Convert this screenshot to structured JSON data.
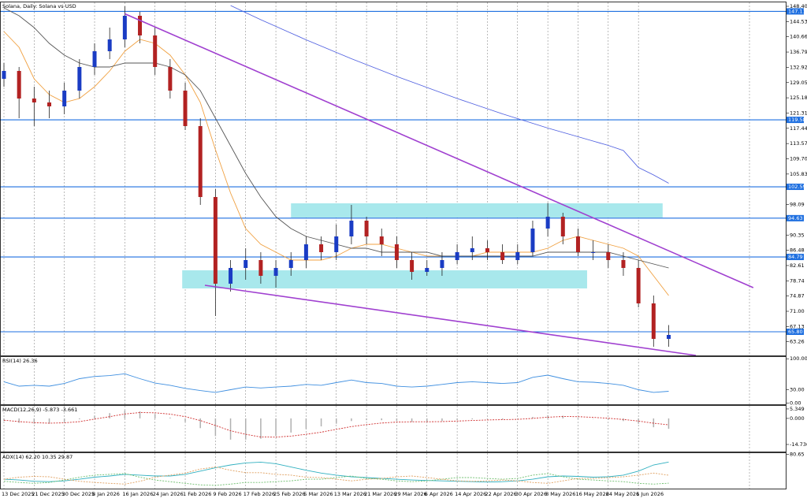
{
  "chart_data": [
    {
      "type": "candlestick",
      "title": "Solana, Daily:  Solana vs USD",
      "categories": [
        "13 Dec 2025",
        null,
        "21 Dec 2025",
        null,
        "30 Dec 2025",
        null,
        "8 Jan 2026",
        null,
        "16 Jan 2026",
        null,
        "24 Jan 2026",
        null,
        "1 Feb 2026",
        null,
        "9 Feb 2026",
        null,
        "17 Feb 2026",
        null,
        "25 Feb 2026",
        null,
        "5 Mar 2026",
        null,
        "13 Mar 2026",
        null,
        "21 Mar 2026",
        null,
        "29 Mar 2026",
        null,
        "6 Apr 2026",
        null,
        "14 Apr 2026",
        null,
        "22 Apr 2026",
        null,
        "30 Apr 2026",
        null,
        "8 May 2026",
        null,
        "16 May 2026",
        null,
        "24 May 2026",
        null,
        "1 Jun 2026",
        null,
        null
      ],
      "open": [
        130,
        132,
        125,
        124,
        123,
        127,
        133,
        137,
        140,
        146,
        141,
        133,
        127,
        118,
        100,
        78,
        82,
        84,
        80,
        82,
        84,
        88,
        86,
        90,
        94,
        90,
        88,
        84,
        81,
        82,
        84,
        86,
        87,
        86,
        84,
        86,
        92,
        95,
        90,
        86,
        86,
        84,
        82,
        73,
        64
      ],
      "high": [
        134,
        133,
        128,
        127,
        129,
        135,
        139,
        143,
        148.4,
        147,
        143,
        135,
        129,
        120,
        102,
        84,
        87,
        86,
        84,
        86,
        90,
        90,
        93,
        98,
        95,
        92,
        90,
        86,
        84,
        86,
        88,
        90,
        89,
        88,
        88,
        94,
        98.5,
        96,
        92,
        89,
        88,
        86,
        84,
        75,
        67.5
      ],
      "low": [
        128,
        120,
        118,
        120,
        121,
        125,
        131,
        135,
        138,
        139,
        131,
        125,
        117,
        98,
        69.8,
        76,
        79,
        78,
        77,
        80,
        82,
        84,
        84,
        88,
        88,
        85,
        82,
        79,
        80,
        80,
        83,
        84,
        84,
        83,
        83,
        85,
        90,
        88,
        85,
        84,
        82,
        80,
        72,
        62,
        62
      ],
      "close": [
        132,
        125,
        124,
        123,
        127,
        133,
        137,
        140,
        146,
        141,
        133,
        127,
        118,
        100,
        78,
        82,
        84,
        80,
        82,
        84,
        88,
        86,
        90,
        94,
        90,
        88,
        84,
        81,
        82,
        84,
        86,
        87,
        86,
        84,
        86,
        92,
        95,
        90,
        86,
        86,
        84,
        82,
        73,
        64,
        65
      ],
      "up_color": "#1a3cc4",
      "down_color": "#b22222",
      "series": [
        {
          "color": "#f0a040",
          "values": [
            142,
            138,
            130,
            126,
            124,
            125,
            128,
            132,
            137,
            140,
            139,
            136,
            131,
            124,
            112,
            101,
            92,
            88,
            86,
            84,
            84,
            84,
            85,
            87,
            88,
            88,
            87,
            86,
            85,
            85,
            85,
            85,
            86,
            86,
            86,
            86,
            87,
            89,
            90,
            89,
            88,
            87,
            85,
            80,
            75
          ]
        },
        {
          "color": "#555555",
          "values": [
            148,
            146,
            143,
            139,
            136,
            134,
            133,
            133,
            134,
            134,
            134,
            133,
            131,
            127,
            120,
            113,
            106,
            100,
            95,
            92,
            90,
            89,
            88,
            87,
            87,
            86,
            86,
            86,
            86,
            85,
            85,
            85,
            85,
            85,
            85,
            85,
            86,
            86,
            86,
            86,
            86,
            85,
            84,
            83,
            82
          ]
        },
        {
          "color": "#5060e0",
          "values": [
            null,
            null,
            null,
            null,
            null,
            null,
            null,
            null,
            null,
            null,
            null,
            null,
            null,
            null,
            null,
            148.6,
            146.8,
            145,
            143.3,
            141.6,
            139.9,
            138.3,
            136.7,
            135.1,
            133.6,
            132.1,
            130.6,
            129.2,
            127.8,
            126.4,
            125,
            123.7,
            122.4,
            121.1,
            119.9,
            118.7,
            117.5,
            116.4,
            115.3,
            114.2,
            113.1,
            111.8,
            107.5,
            105.6,
            103.5
          ]
        }
      ],
      "levels": [
        147.11,
        119.58,
        102.59,
        94.63,
        84.79,
        {
          "value": 65.8,
          "label": "65.80"
        }
      ],
      "level_color": "#1e6fe0",
      "trendlines": [
        {
          "x": [
            8,
            49.6
          ],
          "y": [
            146.5,
            77
          ]
        },
        {
          "x": [
            13.3,
            45.8
          ],
          "y": [
            77.6,
            59.8
          ]
        }
      ],
      "trend_color": "#a040d0",
      "zones": [
        {
          "x": [
            19,
            43.6
          ],
          "y": [
            94.8,
            98.4
          ]
        },
        {
          "x": [
            11.8,
            38.6
          ],
          "y": [
            76.8,
            81.4
          ]
        }
      ],
      "zone_color": "#a8e8ec",
      "ylim": [
        59.8,
        149.4
      ],
      "yticks": [
        {
          "value": 148.4,
          "label": "148.40"
        },
        144.53,
        140.66,
        136.79,
        132.92,
        129.05,
        125.18,
        121.31,
        117.44,
        113.57,
        {
          "value": 109.7,
          "label": "109.70"
        },
        105.83,
        98.09,
        90.35,
        86.48,
        82.61,
        78.74,
        74.87,
        {
          "value": 71,
          "label": "71.00"
        },
        67.13,
        63.26
      ]
    },
    {
      "type": "line",
      "title": "RSI(14) 26.36",
      "ylim": [
        -3,
        104
      ],
      "yticks": [
        {
          "value": 100,
          "label": "100.00"
        },
        {
          "value": 30,
          "label": "30.00"
        },
        {
          "value": 0,
          "label": "0.00"
        }
      ],
      "series": [
        {
          "color": "#3f8fe0",
          "values": [
            48,
            38,
            40,
            38,
            44,
            55,
            60,
            62,
            66,
            55,
            45,
            40,
            33,
            28,
            24,
            30,
            36,
            34,
            36,
            38,
            42,
            40,
            46,
            52,
            46,
            44,
            38,
            36,
            38,
            42,
            46,
            48,
            46,
            44,
            46,
            58,
            63,
            55,
            48,
            47,
            44,
            40,
            30,
            24,
            26.36
          ]
        }
      ]
    },
    {
      "type": "macd",
      "title": "MACD(12,26,9) -5.873 -3.661",
      "ylim": [
        -18.75,
        7.1
      ],
      "yticks": [
        5.349,
        {
          "value": 0,
          "label": "0.000"
        },
        -14.736
      ],
      "histogram": {
        "color": "#b0b0b0",
        "values": [
          -1.5,
          -2.5,
          -3,
          -3,
          -2,
          -0.5,
          1.5,
          3,
          4.5,
          4,
          2.5,
          0.5,
          -2,
          -5.5,
          -10,
          -12,
          -12,
          -11.5,
          -10,
          -8,
          -6,
          -4.5,
          -3,
          -1.5,
          -1,
          -1,
          -1.5,
          -2,
          -2,
          -1.5,
          -1,
          -0.5,
          -0.3,
          -0.5,
          -0.3,
          0.8,
          1.8,
          1.5,
          0.5,
          -0.2,
          -0.8,
          -1.5,
          -3,
          -5,
          -5.873
        ]
      },
      "series": [
        {
          "color": "#d03030",
          "values": [
            -1,
            -1.8,
            -2.4,
            -2.7,
            -2.5,
            -1.8,
            -0.4,
            1,
            2.5,
            3.3,
            3.2,
            2.4,
            1,
            -1.2,
            -4,
            -7,
            -9,
            -10.5,
            -10.6,
            -10,
            -9,
            -7.8,
            -6.2,
            -4.6,
            -3.5,
            -2.6,
            -2.1,
            -1.9,
            -1.9,
            -1.8,
            -1.5,
            -1.2,
            -0.9,
            -0.7,
            -0.5,
            0,
            0.7,
            1.1,
            1,
            0.6,
            0.1,
            -0.6,
            -1.5,
            -2.7,
            -3.661
          ]
        }
      ]
    },
    {
      "type": "line",
      "title": "ADX(14) 62.20 10.35 29.87",
      "ylim": [
        -3,
        84
      ],
      "yticks": [
        80.65
      ],
      "series": [
        {
          "color": "#30b0c0",
          "values": [
            20,
            18,
            15,
            14,
            16,
            20,
            25,
            28,
            32,
            30,
            28,
            28,
            32,
            40,
            48,
            55,
            60,
            62,
            58,
            50,
            42,
            35,
            30,
            26,
            24,
            22,
            20,
            18,
            17,
            16,
            15,
            14,
            13,
            14,
            16,
            20,
            26,
            28,
            27,
            25,
            26,
            30,
            40,
            55,
            62.2
          ]
        },
        {
          "color": "#70c070",
          "values": [
            15,
            12,
            10,
            12,
            18,
            25,
            30,
            32,
            34,
            25,
            18,
            14,
            10,
            6,
            5,
            8,
            12,
            12,
            14,
            16,
            20,
            20,
            24,
            28,
            22,
            20,
            16,
            14,
            16,
            20,
            24,
            24,
            22,
            20,
            22,
            30,
            34,
            26,
            20,
            18,
            16,
            14,
            10,
            8,
            10.35
          ]
        },
        {
          "color": "#e0a060",
          "values": [
            20,
            25,
            27,
            26,
            20,
            15,
            12,
            10,
            8,
            15,
            25,
            30,
            35,
            45,
            50,
            42,
            36,
            36,
            32,
            30,
            25,
            24,
            20,
            16,
            20,
            22,
            26,
            28,
            24,
            20,
            16,
            15,
            16,
            18,
            16,
            12,
            10,
            16,
            22,
            22,
            24,
            26,
            30,
            35,
            29.87
          ]
        }
      ]
    }
  ]
}
